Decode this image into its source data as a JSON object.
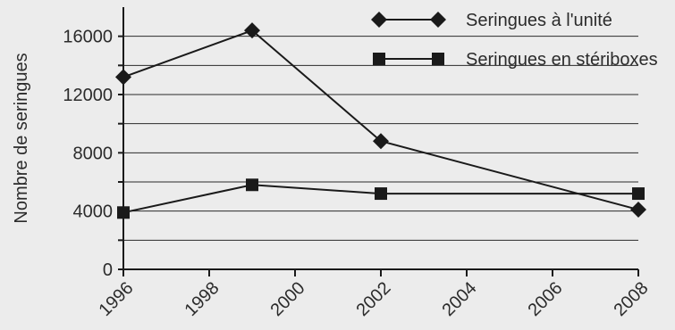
{
  "chart_data": {
    "type": "line",
    "title": "",
    "xlabel": "",
    "ylabel": "Nombre de seringues",
    "xlim": [
      1996,
      2008
    ],
    "ylim": [
      0,
      18000
    ],
    "x_ticks": [
      1996,
      1998,
      2000,
      2002,
      2004,
      2006,
      2008
    ],
    "y_ticks": [
      0,
      4000,
      8000,
      12000,
      16000
    ],
    "y_gridlines": [
      2000,
      4000,
      6000,
      8000,
      10000,
      12000,
      14000,
      16000
    ],
    "grid": true,
    "legend_position": "top-right",
    "series": [
      {
        "name": "Seringues à l'unité",
        "marker": "diamond",
        "color": "#1a1a1a",
        "x": [
          1996,
          1999,
          2002,
          2008
        ],
        "y": [
          13200,
          16400,
          8800,
          4100
        ]
      },
      {
        "name": "Seringues en stériboxes",
        "marker": "square",
        "color": "#1a1a1a",
        "x": [
          1996,
          1999,
          2002,
          2008
        ],
        "y": [
          3900,
          5800,
          5200,
          5200
        ]
      }
    ]
  },
  "colors": {
    "background": "#ececec",
    "ink": "#1a1a1a",
    "grid": "#2a2a2a"
  }
}
